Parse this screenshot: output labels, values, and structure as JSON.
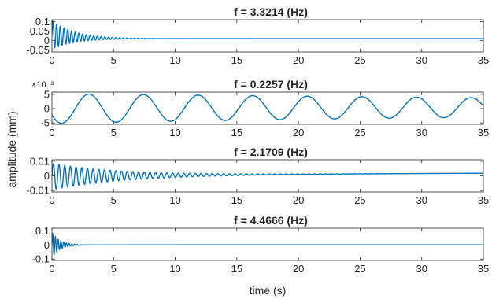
{
  "chart_data": {
    "type": "line",
    "ylabel": "amplitude (mm)",
    "xlabel": "time (s)",
    "line_color": "#0072BD",
    "axis_color": "#262626",
    "panels": [
      {
        "title": "f =  3.3214 (Hz)",
        "xlim": [
          0,
          35
        ],
        "ylim": [
          -0.06,
          0.11
        ],
        "xticks": [
          0,
          5,
          10,
          15,
          20,
          25,
          30,
          35
        ],
        "xtick_labels": [
          "0",
          "5",
          "10",
          "15",
          "20",
          "25",
          "30",
          "35"
        ],
        "yticks": [
          -0.05,
          0,
          0.05,
          0.1
        ],
        "ytick_labels": [
          "-0.05",
          "0",
          "0.05",
          "0.1"
        ],
        "series": {
          "frequency": 3.3214,
          "amplitude": 0.075,
          "decay": 0.55,
          "offset_start": 0.03,
          "offset_end": 0.01,
          "offset_rate": 0.5,
          "t_end": 35
        }
      },
      {
        "title": "f =  0.2257 (Hz)",
        "exponent_label": "×10⁻³",
        "xlim": [
          0,
          35
        ],
        "ylim": [
          -5.5,
          5.8
        ],
        "xticks": [
          0,
          5,
          10,
          15,
          20,
          25,
          30,
          35
        ],
        "xtick_labels": [
          "0",
          "5",
          "10",
          "15",
          "20",
          "25",
          "30",
          "35"
        ],
        "yticks": [
          -5,
          0,
          5
        ],
        "ytick_labels": [
          "-5",
          "0",
          "5"
        ],
        "series": {
          "frequency": 0.2257,
          "amplitude": 5.2,
          "decay": 0.012,
          "offset_start": 0,
          "offset_end": 0.5,
          "offset_rate": 0.05,
          "phase": 3.6,
          "t_end": 35
        }
      },
      {
        "title": "f =  2.1709 (Hz)",
        "xlim": [
          0,
          35
        ],
        "ylim": [
          -0.011,
          0.011
        ],
        "xticks": [
          0,
          5,
          10,
          15,
          20,
          25,
          30,
          35
        ],
        "xtick_labels": [
          "0",
          "5",
          "10",
          "15",
          "20",
          "25",
          "30",
          "35"
        ],
        "yticks": [
          -0.01,
          0,
          0.01
        ],
        "ytick_labels": [
          "-0.01",
          "0",
          "0.01"
        ],
        "series": {
          "frequency": 2.1709,
          "amplitude": 0.009,
          "decay": 0.18,
          "offset_start": -0.0005,
          "offset_end": 0.003,
          "offset_rate": 0.03,
          "t_end": 35
        }
      },
      {
        "title": "f =  4.4666 (Hz)",
        "xlim": [
          0,
          35
        ],
        "ylim": [
          -0.11,
          0.12
        ],
        "xticks": [
          0,
          5,
          10,
          15,
          20,
          25,
          30,
          35
        ],
        "xtick_labels": [
          "0",
          "5",
          "10",
          "15",
          "20",
          "25",
          "30",
          "35"
        ],
        "yticks": [
          -0.1,
          0,
          0.1
        ],
        "ytick_labels": [
          "-0.1",
          "0",
          "0.1"
        ],
        "series": {
          "frequency": 4.4666,
          "amplitude": 0.09,
          "decay": 1.6,
          "offset_start": 0,
          "offset_end": 0.001,
          "offset_rate": 0.2,
          "t_end": 35
        }
      }
    ]
  }
}
